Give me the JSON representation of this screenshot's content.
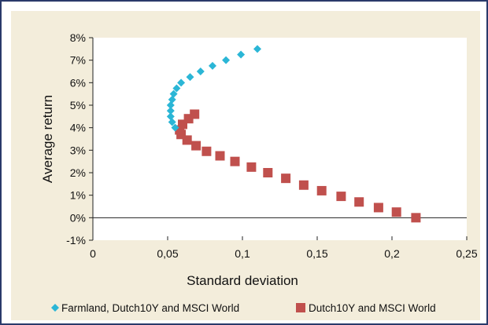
{
  "chart_data": {
    "type": "scatter",
    "title": "",
    "xlabel": "Standard deviation",
    "ylabel": "Average return",
    "xlim": [
      0,
      0.25
    ],
    "ylim": [
      -1,
      8
    ],
    "x_ticks": [
      "0",
      "0,05",
      "0,1",
      "0,15",
      "0,2",
      "0,25"
    ],
    "y_ticks": [
      "-1%",
      "0%",
      "1%",
      "2%",
      "3%",
      "4%",
      "5%",
      "6%",
      "7%",
      "8%"
    ],
    "grid": false,
    "legend_position": "bottom",
    "series": [
      {
        "name": "Farmland, Dutch10Y and MSCI World",
        "color": "#2bb6d6",
        "marker": "diamond",
        "points": [
          [
            0.11,
            7.5
          ],
          [
            0.099,
            7.25
          ],
          [
            0.089,
            7.0
          ],
          [
            0.08,
            6.75
          ],
          [
            0.072,
            6.5
          ],
          [
            0.065,
            6.25
          ],
          [
            0.059,
            6.0
          ],
          [
            0.056,
            5.75
          ],
          [
            0.054,
            5.5
          ],
          [
            0.053,
            5.25
          ],
          [
            0.052,
            5.0
          ],
          [
            0.052,
            4.75
          ],
          [
            0.052,
            4.5
          ],
          [
            0.053,
            4.25
          ],
          [
            0.055,
            4.0
          ]
        ]
      },
      {
        "name": "Dutch10Y and MSCI World",
        "color": "#c0504d",
        "marker": "square",
        "points": [
          [
            0.068,
            4.6
          ],
          [
            0.064,
            4.4
          ],
          [
            0.06,
            4.15
          ],
          [
            0.058,
            3.9
          ],
          [
            0.059,
            3.7
          ],
          [
            0.063,
            3.45
          ],
          [
            0.069,
            3.2
          ],
          [
            0.076,
            2.95
          ],
          [
            0.085,
            2.75
          ],
          [
            0.095,
            2.5
          ],
          [
            0.106,
            2.25
          ],
          [
            0.117,
            2.0
          ],
          [
            0.129,
            1.75
          ],
          [
            0.141,
            1.45
          ],
          [
            0.153,
            1.2
          ],
          [
            0.166,
            0.95
          ],
          [
            0.178,
            0.7
          ],
          [
            0.191,
            0.45
          ],
          [
            0.203,
            0.25
          ],
          [
            0.216,
            0.0
          ]
        ]
      }
    ]
  }
}
